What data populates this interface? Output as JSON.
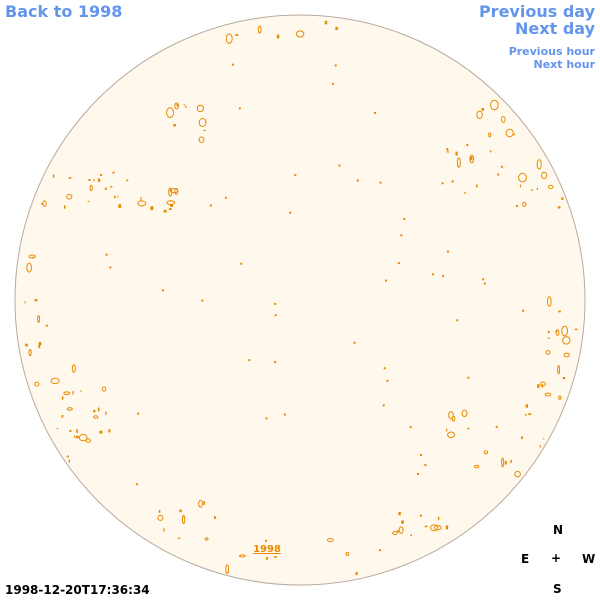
{
  "nav": {
    "back_label": "Back to 1998",
    "prev_day_label": "Previous day",
    "next_day_label": "Next day",
    "prev_hour_label": "Previous hour",
    "next_hour_label": "Next hour"
  },
  "disk": {
    "year_link": "1998",
    "fill_color": "#fff8ec",
    "edge_color": "#b8aaa0",
    "feature_color": "#e88a00"
  },
  "timestamp": "1998-12-20T17:36:34",
  "compass": {
    "north": "N",
    "east": "E",
    "center": "+",
    "west": "W",
    "south": "S"
  }
}
